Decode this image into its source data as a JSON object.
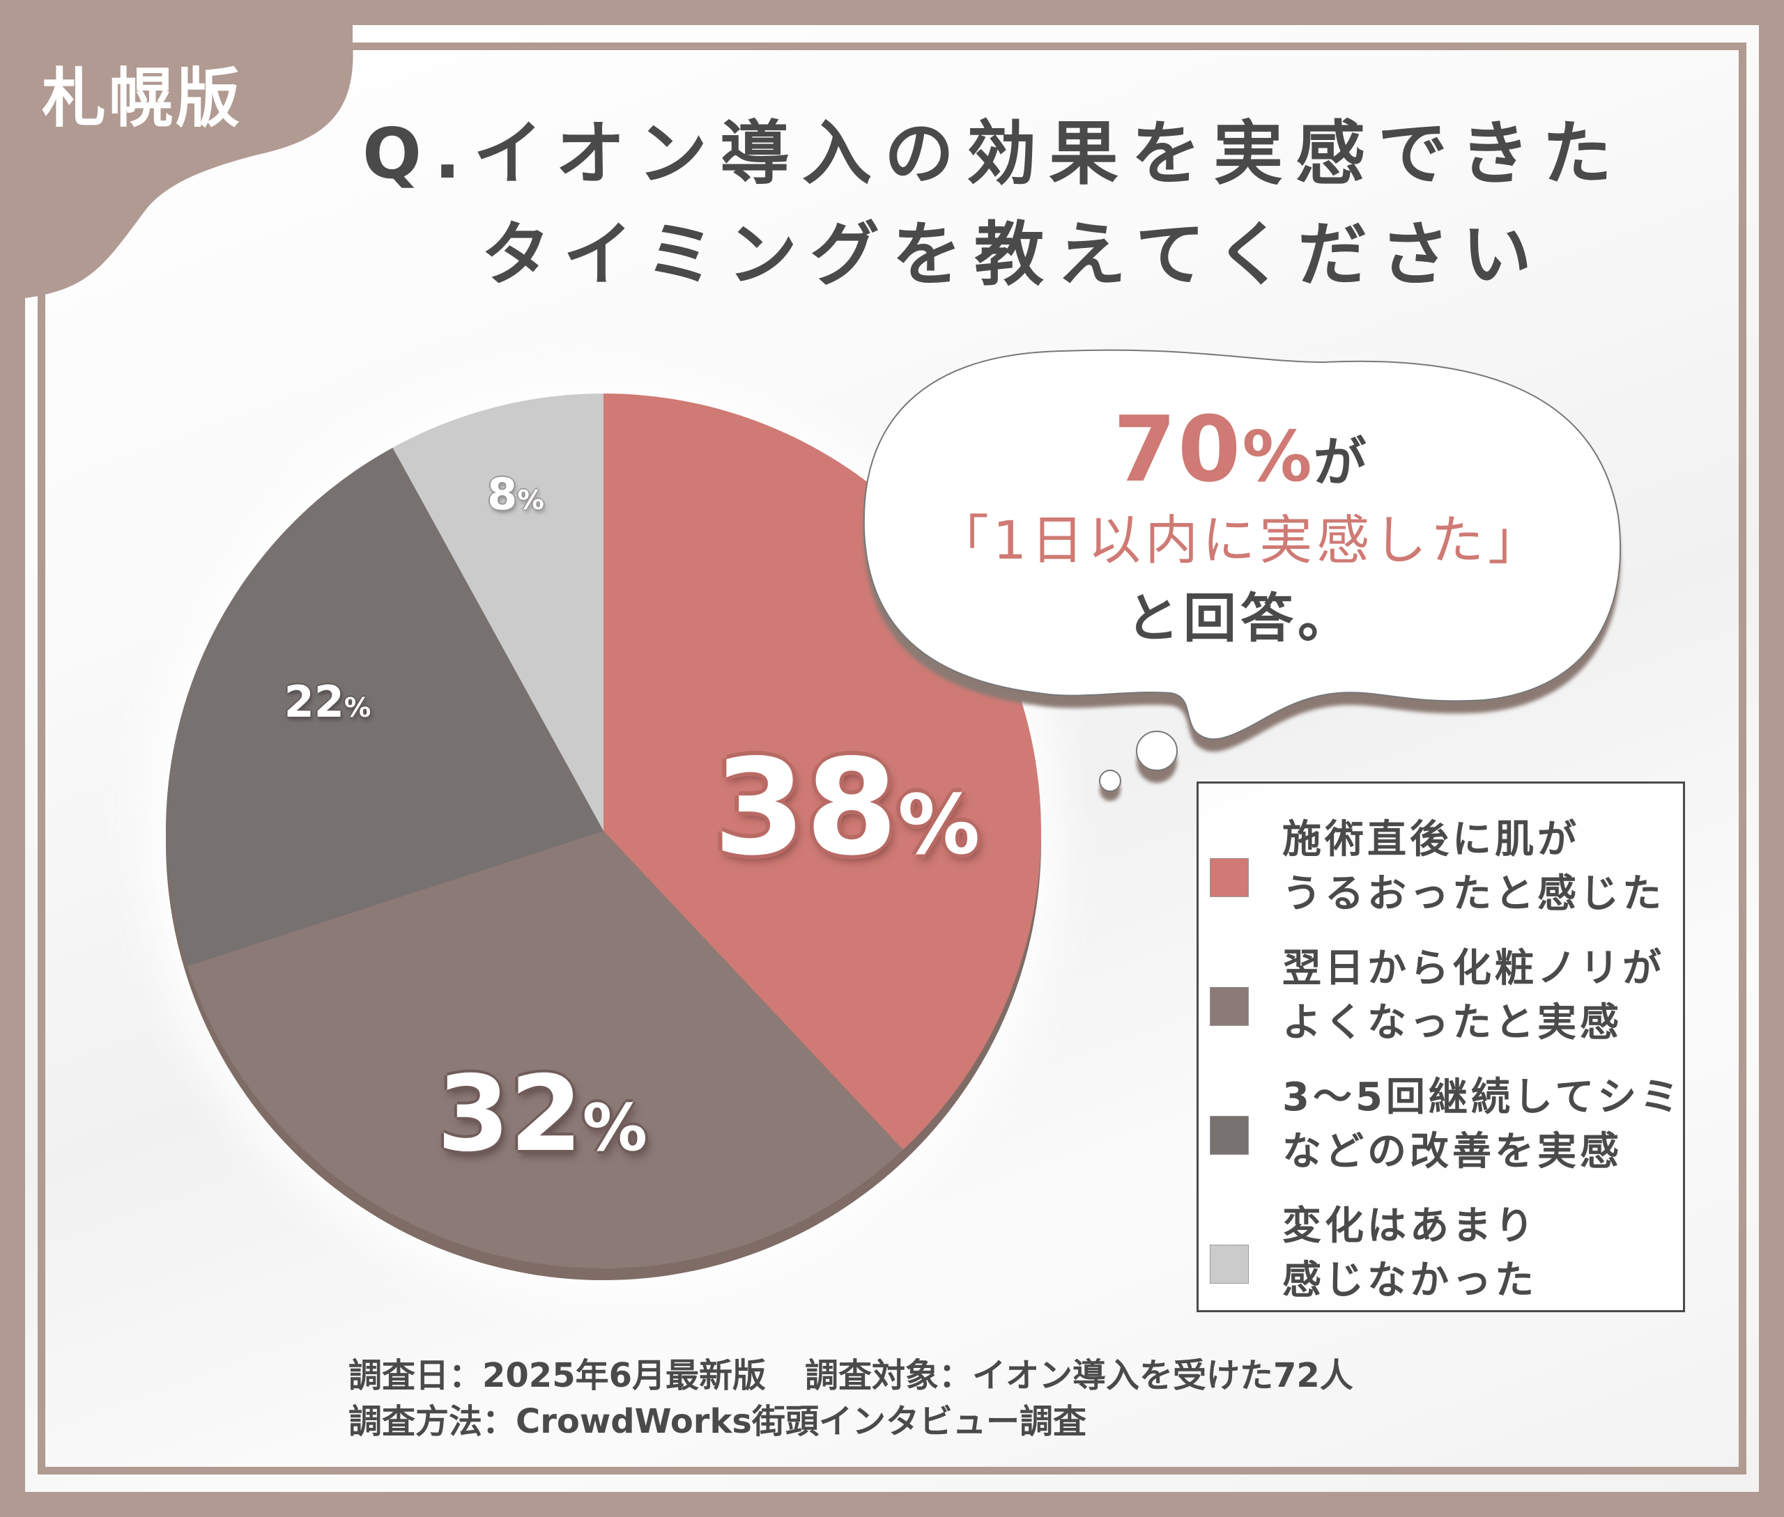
{
  "region_tag": "札幌版",
  "title": {
    "line1": "Q.イオン導入の効果を実感できた",
    "line2": "タイミングを教えてください"
  },
  "callout": {
    "highlight_number": "70",
    "highlight_pct": "%",
    "particle": "が",
    "quote": "「1日以内に実感した」",
    "closing": "と回答。"
  },
  "colors": {
    "frame": "#b09a92",
    "text": "#4a4a4a",
    "accent": "#cf7a74",
    "extrusion": "#7f6c66",
    "bubble_shadow": "#8b7a73"
  },
  "chart_data": {
    "type": "pie",
    "title": "Q.イオン導入の効果を実感できたタイミングを教えてください",
    "start_angle_deg": 0,
    "direction": "clockwise",
    "categories": [
      "施術直後に肌がうるおったと感じた",
      "翌日から化粧ノリがよくなったと実感",
      "3〜5回継続してシミなどの改善を実感",
      "変化はあまり感じなかった"
    ],
    "values": [
      38,
      32,
      22,
      8
    ],
    "unit": "%",
    "colors": [
      "#cf7a74",
      "#8c7a77",
      "#777170",
      "#cccbcb"
    ],
    "data_labels": [
      "38",
      "32",
      "22",
      "8"
    ],
    "legend_position": "right",
    "annotation": "70%が「1日以内に実感した」と回答。"
  },
  "legend": {
    "items": [
      {
        "text": "施術直後に肌が\nうるおったと感じた",
        "color": "#cf7a74"
      },
      {
        "text": "翌日から化粧ノリが\nよくなったと実感",
        "color": "#8c7a77"
      },
      {
        "text": "3〜5回継続してシミ\nなどの改善を実感",
        "color": "#777170"
      },
      {
        "text": "変化はあまり\n感じなかった",
        "color": "#cccbcb"
      }
    ]
  },
  "pie_labels": {
    "l0": {
      "num": "38",
      "pct": "%"
    },
    "l1": {
      "num": "32",
      "pct": "%"
    },
    "l2": {
      "num": "22",
      "pct": "%"
    },
    "l3": {
      "num": "8",
      "pct": "%"
    }
  },
  "footer": {
    "date": "調査日：2025年6月最新版",
    "target": "調査対象：イオン導入を受けた72人",
    "method": "調査方法：CrowdWorks街頭インタビュー調査"
  }
}
